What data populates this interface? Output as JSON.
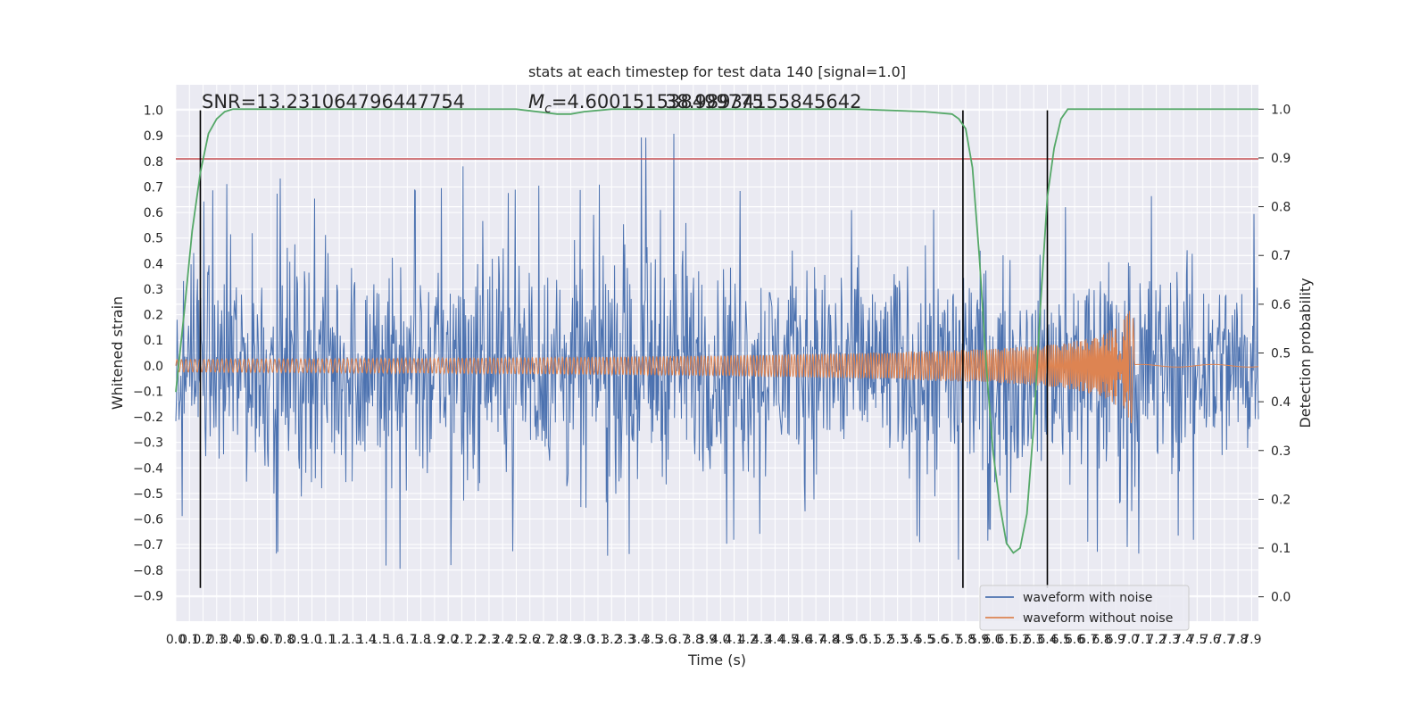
{
  "chart_data": {
    "type": "line",
    "title": "stats at each timestep for test data 140 [signal=1.0]",
    "xlabel": "Time (s)",
    "ylabel": "Whitened strain",
    "y2label": "Detection probability",
    "xlim": [
      0,
      7.95
    ],
    "ylim": [
      -1.0,
      1.1
    ],
    "y2lim": [
      -0.05,
      1.05
    ],
    "x_ticks": [
      0.0,
      0.1,
      0.2,
      0.3,
      0.4,
      0.5,
      0.6,
      0.7,
      0.8,
      0.9,
      1.0,
      1.1,
      1.2,
      1.3,
      1.4,
      1.5,
      1.6,
      1.7,
      1.8,
      1.9,
      2.0,
      2.1,
      2.2,
      2.3,
      2.4,
      2.5,
      2.6,
      2.7,
      2.8,
      2.9,
      3.0,
      3.1,
      3.2,
      3.3,
      3.4,
      3.5,
      3.6,
      3.7,
      3.8,
      3.9,
      4.0,
      4.1,
      4.2,
      4.3,
      4.4,
      4.5,
      4.6,
      4.7,
      4.8,
      4.9,
      5.0,
      5.1,
      5.2,
      5.3,
      5.4,
      5.5,
      5.6,
      5.7,
      5.8,
      5.9,
      6.0,
      6.1,
      6.2,
      6.3,
      6.4,
      6.5,
      6.6,
      6.7,
      6.8,
      6.9,
      7.0,
      7.1,
      7.2,
      7.3,
      7.4,
      7.5,
      7.6,
      7.7,
      7.8,
      7.9
    ],
    "x_tick_labels": [
      "0.0",
      "0.1",
      "0.2",
      "0.3",
      "0.4",
      "0.5",
      "0.6",
      "0.7",
      "0.8",
      "0.9",
      "1.0",
      "1.1",
      "1.2",
      "1.3",
      "1.4",
      "1.5",
      "1.6",
      "1.7",
      "1.8",
      "1.9",
      "2.0",
      "2.1",
      "2.2",
      "2.3",
      "2.4",
      "2.5",
      "2.6",
      "2.7",
      "2.8",
      "2.9",
      "3.0",
      "3.1",
      "3.2",
      "3.3",
      "3.4",
      "3.5",
      "3.6",
      "3.7",
      "3.8",
      "3.9",
      "4.0",
      "4.1",
      "4.2",
      "4.3",
      "4.4",
      "4.5",
      "4.6",
      "4.7",
      "4.8",
      "4.9",
      "5.0",
      "5.1",
      "5.2",
      "5.3",
      "5.4",
      "5.5",
      "5.6",
      "5.7",
      "5.8",
      "5.9",
      "6.0",
      "6.1",
      "6.2",
      "6.3",
      "6.4",
      "6.5",
      "6.6",
      "6.7",
      "6.8",
      "6.9",
      "7.0",
      "7.1",
      "7.2",
      "7.3",
      "7.4",
      "7.5",
      "7.6",
      "7.7",
      "7.8",
      "7.9"
    ],
    "y_ticks": [
      1.0,
      0.9,
      0.8,
      0.7,
      0.6,
      0.5,
      0.4,
      0.3,
      0.2,
      0.1,
      0.0,
      -0.1,
      -0.2,
      -0.3,
      -0.4,
      -0.5,
      -0.6,
      -0.7,
      -0.8,
      -0.9
    ],
    "y_tick_labels": [
      "1.0",
      "0.9",
      "0.8",
      "0.7",
      "0.6",
      "0.5",
      "0.4",
      "0.3",
      "0.2",
      "0.1",
      "0.0",
      "−0.1",
      "−0.2",
      "−0.3",
      "−0.4",
      "−0.5",
      "−0.6",
      "−0.7",
      "−0.8",
      "−0.9"
    ],
    "y2_ticks": [
      1.0,
      0.9,
      0.8,
      0.7,
      0.6,
      0.5,
      0.4,
      0.3,
      0.2,
      0.1,
      0.0
    ],
    "y2_tick_labels": [
      "1.0",
      "0.9",
      "0.8",
      "0.7",
      "0.6",
      "0.5",
      "0.4",
      "0.3",
      "0.2",
      "0.1",
      "0.0"
    ],
    "grid": true,
    "legend_position": "bottom-right",
    "annotations": {
      "snr": "SNR=13.231064796447754",
      "mc": "M",
      "mc_sub": "c",
      "mc_value": "=4.600151538499775",
      "overlap": "38.98934155845642"
    },
    "series": [
      {
        "name": "waveform with noise",
        "color": "#4c72b0",
        "axis": "left",
        "envelope": {
          "note_values": "approximate upper and lower extremes over time",
          "x": [
            0.0,
            0.5,
            1.0,
            1.5,
            2.0,
            2.3,
            2.5,
            3.0,
            3.55,
            4.0,
            4.5,
            4.9,
            5.2,
            5.6,
            5.8,
            6.0,
            6.5,
            7.0,
            7.5,
            7.95
          ],
          "upper": [
            0.62,
            0.76,
            0.72,
            0.76,
            0.75,
            0.86,
            0.7,
            0.72,
            1.0,
            0.7,
            0.72,
            0.79,
            0.64,
            0.68,
            0.76,
            0.62,
            0.62,
            0.73,
            0.66,
            0.65
          ],
          "lower": [
            -0.6,
            -0.77,
            -0.82,
            -0.79,
            -0.85,
            -0.72,
            -0.76,
            -0.87,
            -0.71,
            -0.76,
            -0.7,
            -0.81,
            -0.7,
            -0.73,
            -0.78,
            -0.7,
            -0.72,
            -0.78,
            -0.7,
            -0.63
          ]
        }
      },
      {
        "name": "waveform without noise",
        "color": "#dd8452",
        "axis": "left",
        "envelope": {
          "x": [
            0.0,
            1.0,
            2.0,
            3.0,
            4.0,
            5.0,
            6.0,
            6.5,
            6.8,
            6.95,
            7.03,
            7.04,
            7.95
          ],
          "amplitude": [
            0.025,
            0.027,
            0.03,
            0.034,
            0.04,
            0.05,
            0.066,
            0.085,
            0.12,
            0.17,
            0.24,
            0.005,
            0.005
          ]
        }
      },
      {
        "name": "detection probability",
        "color": "#55a868",
        "axis": "right",
        "x": [
          0.0,
          0.06,
          0.12,
          0.18,
          0.24,
          0.3,
          0.36,
          0.42,
          0.5,
          0.6,
          0.8,
          1.0,
          2.0,
          2.5,
          2.8,
          2.9,
          3.0,
          3.2,
          3.5,
          4.0,
          5.0,
          5.5,
          5.7,
          5.75,
          5.8,
          5.85,
          5.9,
          5.95,
          6.0,
          6.05,
          6.1,
          6.15,
          6.2,
          6.25,
          6.3,
          6.35,
          6.4,
          6.45,
          6.5,
          6.55,
          6.6,
          6.7,
          7.0,
          7.95
        ],
        "y": [
          0.42,
          0.58,
          0.75,
          0.87,
          0.95,
          0.98,
          0.995,
          1.0,
          1.0,
          1.0,
          1.0,
          1.0,
          1.0,
          1.0,
          0.99,
          0.99,
          0.995,
          1.0,
          1.0,
          1.0,
          1.0,
          0.995,
          0.99,
          0.98,
          0.96,
          0.88,
          0.7,
          0.48,
          0.3,
          0.19,
          0.11,
          0.09,
          0.1,
          0.17,
          0.35,
          0.6,
          0.82,
          0.92,
          0.98,
          1.0,
          1.0,
          1.0,
          1.0,
          1.0
        ]
      }
    ],
    "hlines": [
      {
        "y": 0.81,
        "color": "#c44e52",
        "axis": "left"
      }
    ],
    "vlines": [
      {
        "x": 0.18,
        "color": "#000000"
      },
      {
        "x": 5.78,
        "color": "#000000"
      },
      {
        "x": 6.4,
        "color": "#000000"
      }
    ]
  }
}
